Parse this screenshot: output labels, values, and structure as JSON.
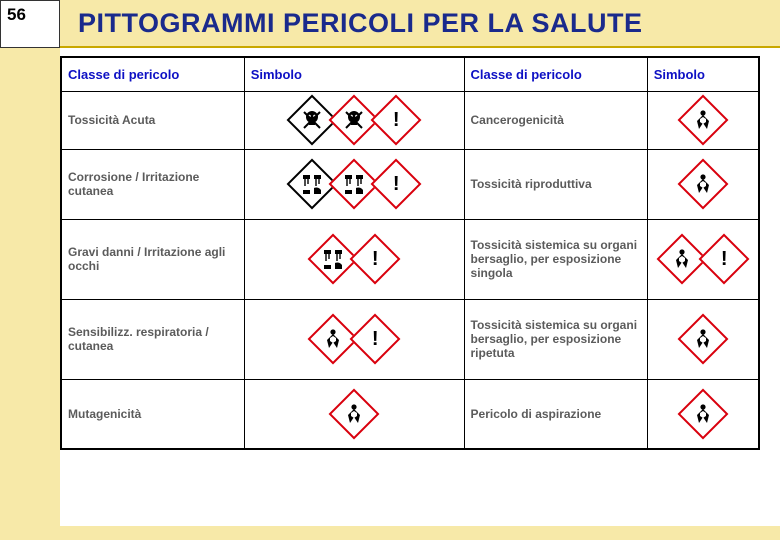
{
  "slide_number": "56",
  "title": "PITTOGRAMMI PERICOLI PER LA SALUTE",
  "headers": {
    "col1": "Classe di pericolo",
    "col2": "Simbolo",
    "col3": "Classe di pericolo",
    "col4": "Simbolo"
  },
  "rows": [
    {
      "left": "Tossicità Acuta",
      "right": "Cancerogenicità",
      "left_icons": [
        "skull-black",
        "skull-red",
        "exclaim"
      ],
      "right_icons": [
        "health"
      ]
    },
    {
      "left": "Corrosione / Irritazione cutanea",
      "right": "Tossicità riproduttiva",
      "left_icons": [
        "corrosion-black",
        "corrosion-red",
        "exclaim"
      ],
      "right_icons": [
        "health"
      ]
    },
    {
      "left": "Gravi danni / Irritazione agli occhi",
      "right": "Tossicità sistemica su organi bersaglio, per esposizione singola",
      "left_icons": [
        "corrosion-red",
        "exclaim"
      ],
      "right_icons": [
        "health",
        "exclaim"
      ]
    },
    {
      "left": "Sensibilizz. respiratoria / cutanea",
      "right": "Tossicità sistemica su organi bersaglio, per esposizione ripetuta",
      "left_icons": [
        "health",
        "exclaim"
      ],
      "right_icons": [
        "health"
      ]
    },
    {
      "left": "Mutagenicità",
      "right": "Pericolo di aspirazione",
      "left_icons": [
        "health"
      ],
      "right_icons": [
        "health"
      ]
    }
  ],
  "colors": {
    "header_text": "#0d10c4",
    "label_text": "#5b5b5b",
    "accent_bg": "#f7e9a8",
    "picto_red": "#d9000d"
  }
}
